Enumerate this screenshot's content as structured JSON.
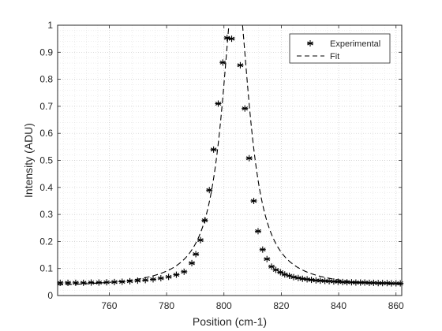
{
  "chart_data": {
    "type": "scatter",
    "xlabel": "Position (cm-1)",
    "ylabel": "Intensity (ADU)",
    "xlim": [
      742,
      862
    ],
    "ylim": [
      0,
      1
    ],
    "x_ticks": [
      760,
      780,
      800,
      820,
      840,
      860
    ],
    "y_ticks": [
      0,
      0.1,
      0.2,
      0.3,
      0.4,
      0.5,
      0.6,
      0.7,
      0.8,
      0.9,
      1
    ],
    "grid": "major and minor, dotted",
    "legend_position": "top-right",
    "colors": {
      "series": "#000000",
      "grid": "#c8c8c8",
      "axis": "#262626"
    },
    "series": [
      {
        "name": "Experimental",
        "style": "asterisk markers",
        "points": [
          [
            742.9,
            0.047
          ],
          [
            745.6,
            0.047
          ],
          [
            748.3,
            0.047
          ],
          [
            751.0,
            0.047
          ],
          [
            753.7,
            0.048
          ],
          [
            756.4,
            0.048
          ],
          [
            759.1,
            0.049
          ],
          [
            761.8,
            0.05
          ],
          [
            764.5,
            0.051
          ],
          [
            767.2,
            0.053
          ],
          [
            769.9,
            0.055
          ],
          [
            772.6,
            0.057
          ],
          [
            775.3,
            0.06
          ],
          [
            778.0,
            0.064
          ],
          [
            780.7,
            0.069
          ],
          [
            783.4,
            0.077
          ],
          [
            786.1,
            0.088
          ],
          [
            788.8,
            0.12
          ],
          [
            790.2,
            0.153
          ],
          [
            791.8,
            0.205
          ],
          [
            793.3,
            0.278
          ],
          [
            794.9,
            0.39
          ],
          [
            796.4,
            0.54
          ],
          [
            798.0,
            0.71
          ],
          [
            799.6,
            0.862
          ],
          [
            801.1,
            0.953
          ],
          [
            802.7,
            0.95
          ],
          [
            805.7,
            0.852
          ],
          [
            807.3,
            0.692
          ],
          [
            808.8,
            0.508
          ],
          [
            810.4,
            0.35
          ],
          [
            811.9,
            0.238
          ],
          [
            813.5,
            0.17
          ],
          [
            815.0,
            0.135
          ],
          [
            816.6,
            0.107
          ],
          [
            818.1,
            0.095
          ],
          [
            819.7,
            0.086
          ],
          [
            821.2,
            0.078
          ],
          [
            822.8,
            0.073
          ],
          [
            824.3,
            0.068
          ],
          [
            825.9,
            0.065
          ],
          [
            827.4,
            0.062
          ],
          [
            829.0,
            0.06
          ],
          [
            830.5,
            0.058
          ],
          [
            832.1,
            0.056
          ],
          [
            833.6,
            0.055
          ],
          [
            835.2,
            0.054
          ],
          [
            836.7,
            0.053
          ],
          [
            838.3,
            0.052
          ],
          [
            839.8,
            0.051
          ],
          [
            841.4,
            0.05
          ],
          [
            842.9,
            0.049
          ],
          [
            844.5,
            0.049
          ],
          [
            846.0,
            0.048
          ],
          [
            847.6,
            0.048
          ],
          [
            849.1,
            0.048
          ],
          [
            850.7,
            0.047
          ],
          [
            852.2,
            0.047
          ],
          [
            853.8,
            0.046
          ],
          [
            855.3,
            0.046
          ],
          [
            856.9,
            0.046
          ],
          [
            858.4,
            0.045
          ],
          [
            860.0,
            0.045
          ],
          [
            861.5,
            0.045
          ]
        ]
      },
      {
        "name": "Fit",
        "style": "dashed line",
        "model": "lorentzian",
        "center": 804.1,
        "hwhm": 5.7,
        "amplitude": 1.14,
        "baseline": 0.03
      }
    ]
  }
}
